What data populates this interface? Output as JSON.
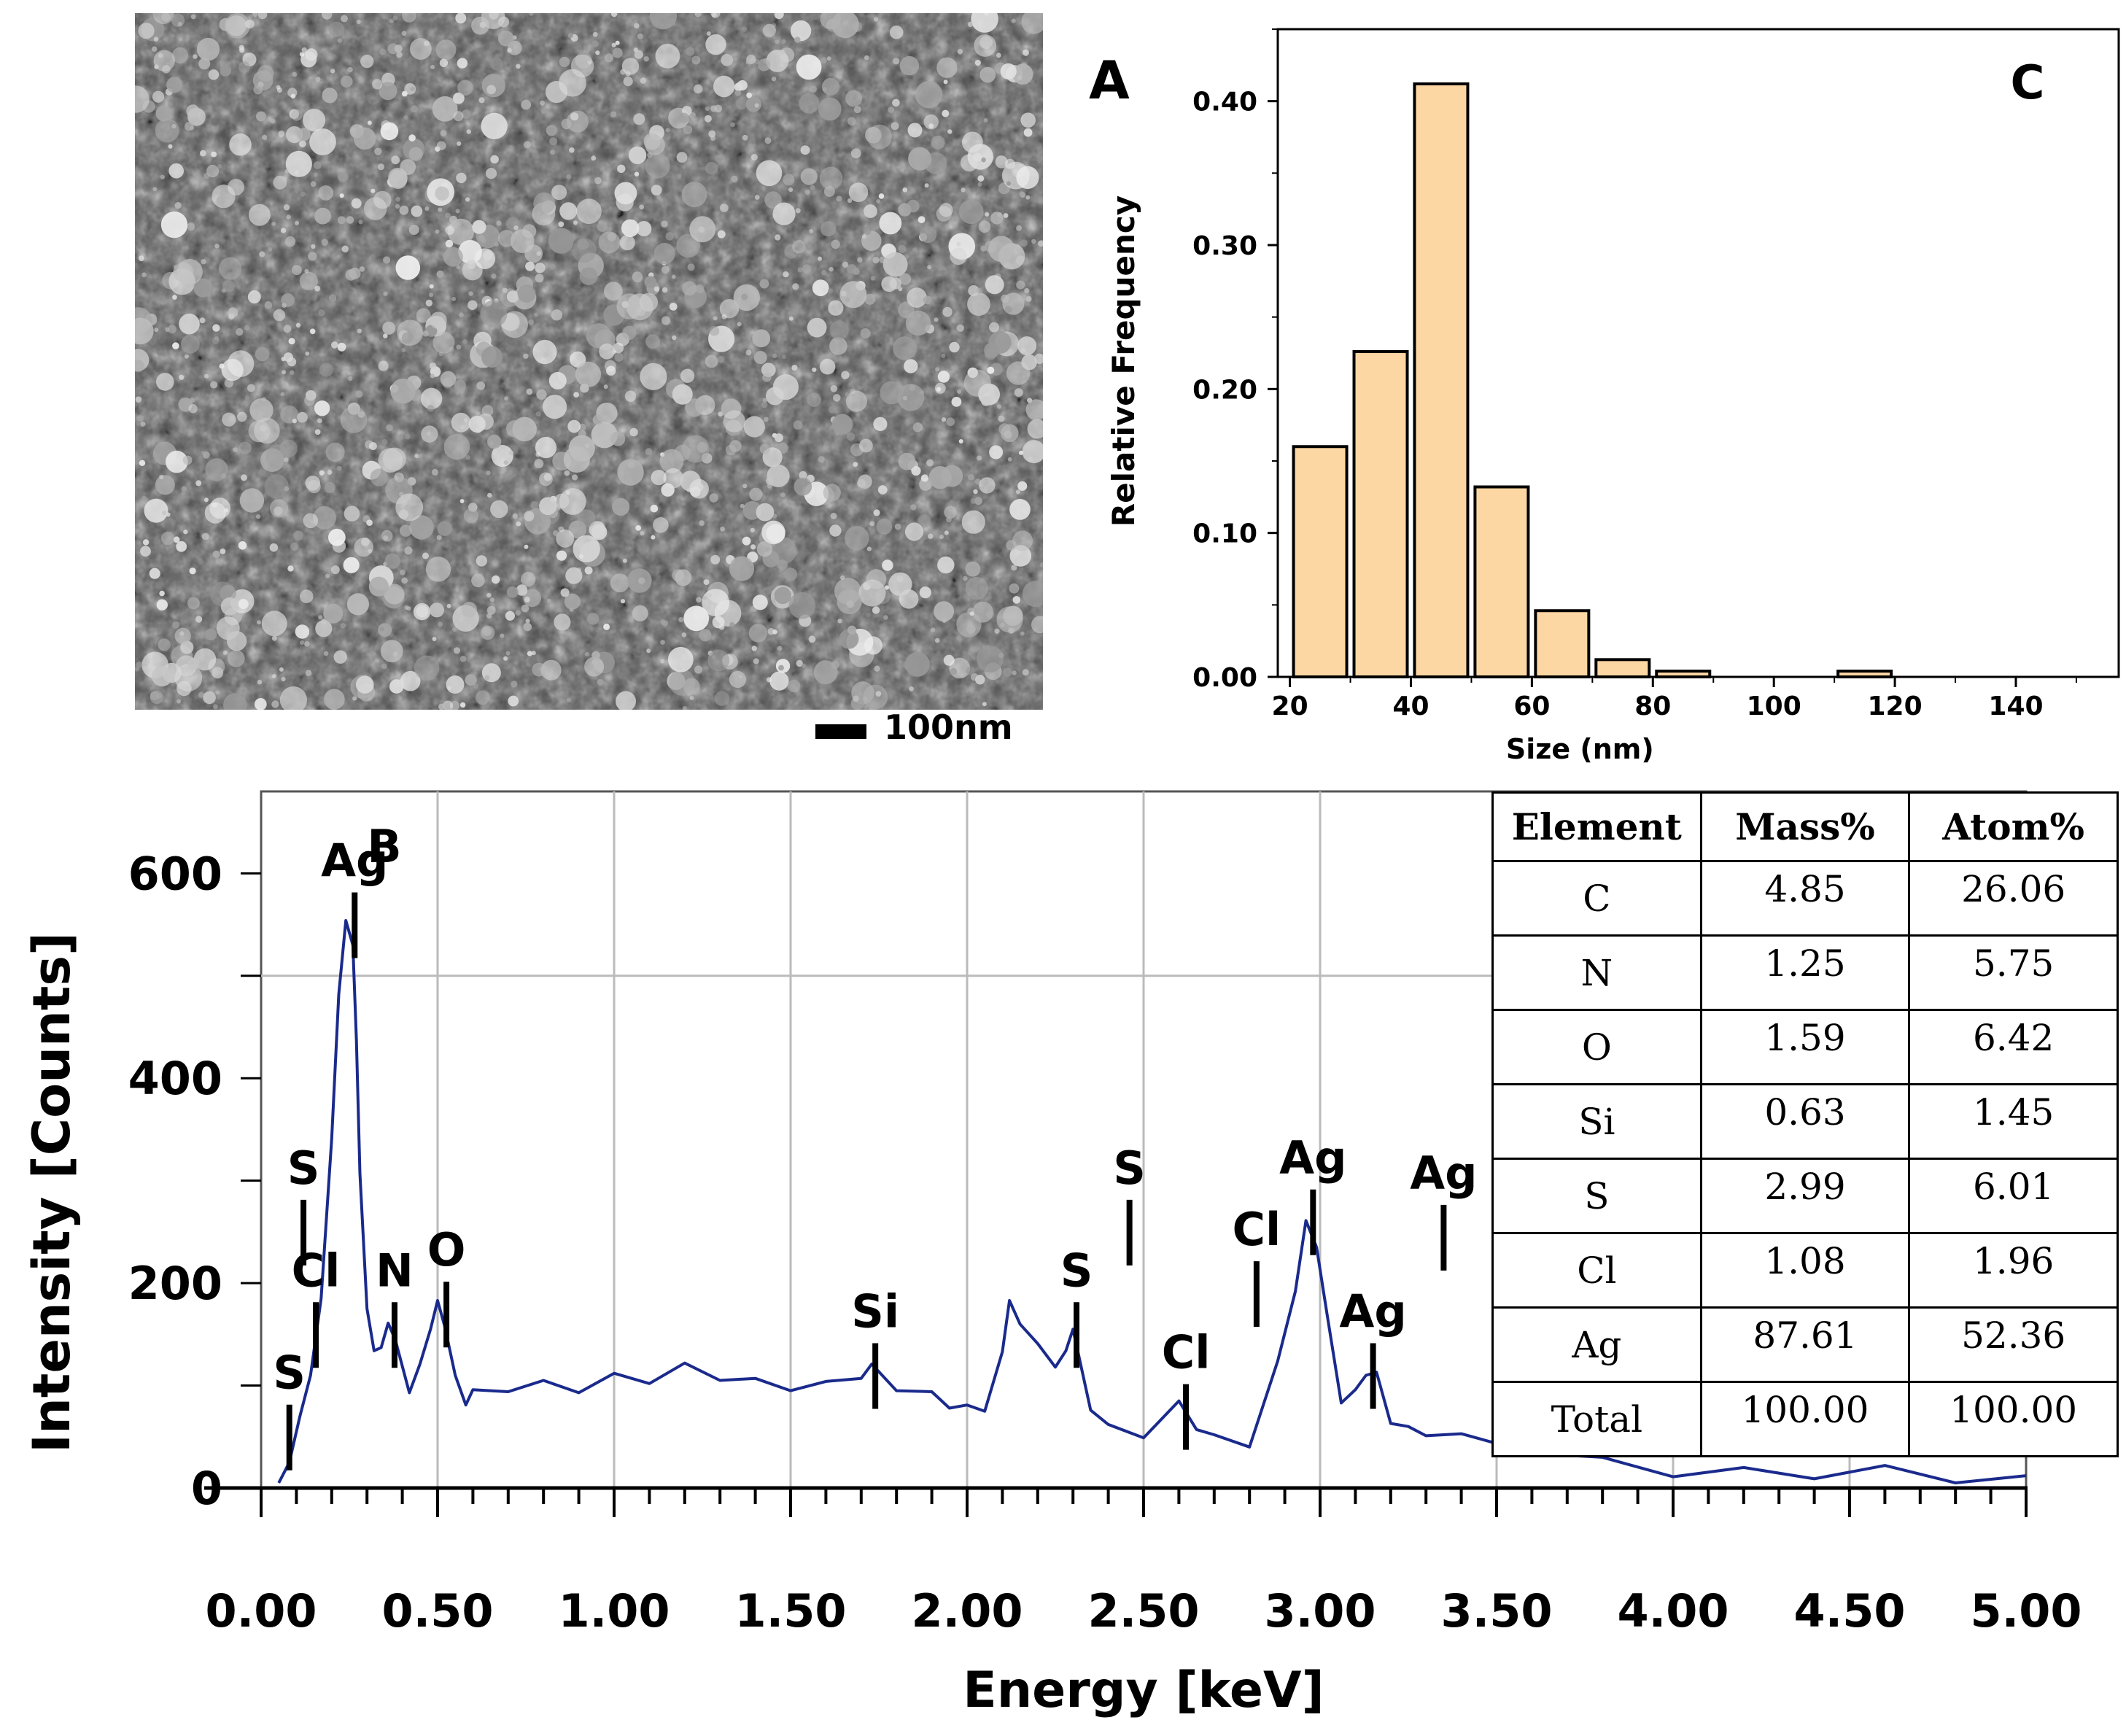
{
  "panels": {
    "a_label": "A",
    "b_label": "B",
    "c_label": "C",
    "scale_bar_label": "100nm"
  },
  "colors": {
    "bar_fill": "#fdd7a3",
    "spectrum_line": "#1a2a8c",
    "grid": "#bbbbbb"
  },
  "chart_data": [
    {
      "id": "histogram",
      "type": "bar",
      "title": "C",
      "xlabel": "Size (nm)",
      "ylabel": "Relative Frequency",
      "xlim": [
        18,
        157
      ],
      "ylim": [
        0,
        0.45
      ],
      "xticks": [
        20,
        40,
        60,
        80,
        100,
        120,
        140
      ],
      "xtick_labels": [
        "20",
        "40",
        "60",
        "80",
        "100",
        "120",
        "140"
      ],
      "yticks": [
        0,
        0.1,
        0.2,
        0.3,
        0.4
      ],
      "ytick_labels": [
        "0.00",
        "0.10",
        "0.20",
        "0.30",
        "0.40"
      ],
      "bin_width": 10,
      "bar_centers": [
        25,
        35,
        45,
        55,
        65,
        75,
        85,
        115
      ],
      "values": [
        0.16,
        0.226,
        0.412,
        0.132,
        0.046,
        0.012,
        0.004,
        0.004
      ]
    },
    {
      "id": "eds-spectrum",
      "type": "line",
      "title": "B",
      "xlabel": "Energy [keV]",
      "ylabel": "Intensity [Counts]",
      "xlim": [
        0,
        5
      ],
      "ylim": [
        0,
        680
      ],
      "xticks": [
        0,
        0.5,
        1,
        1.5,
        2,
        2.5,
        3,
        3.5,
        4,
        4.5,
        5
      ],
      "xtick_labels": [
        "0.00",
        "0.50",
        "1.00",
        "1.50",
        "2.00",
        "2.50",
        "3.00",
        "3.50",
        "4.00",
        "4.50",
        "5.00"
      ],
      "yticks": [
        0,
        200,
        400,
        600
      ],
      "ytick_labels": [
        "0",
        "200",
        "400",
        "600"
      ],
      "grid": true,
      "x": [
        0.05,
        0.08,
        0.11,
        0.14,
        0.17,
        0.2,
        0.22,
        0.24,
        0.26,
        0.27,
        0.28,
        0.3,
        0.32,
        0.34,
        0.36,
        0.38,
        0.4,
        0.42,
        0.45,
        0.48,
        0.5,
        0.52,
        0.55,
        0.58,
        0.6,
        0.7,
        0.8,
        0.9,
        1.0,
        1.1,
        1.2,
        1.3,
        1.4,
        1.5,
        1.6,
        1.7,
        1.73,
        1.8,
        1.9,
        1.95,
        2.0,
        2.05,
        2.1,
        2.12,
        2.15,
        2.2,
        2.25,
        2.28,
        2.3,
        2.35,
        2.4,
        2.5,
        2.6,
        2.65,
        2.7,
        2.8,
        2.88,
        2.93,
        2.96,
        2.99,
        3.02,
        3.06,
        3.1,
        3.13,
        3.16,
        3.2,
        3.25,
        3.3,
        3.4,
        3.6,
        3.8,
        4.0,
        4.2,
        4.4,
        4.6,
        4.8,
        5.0
      ],
      "values": [
        5,
        25,
        70,
        110,
        180,
        350,
        480,
        560,
        520,
        440,
        300,
        175,
        130,
        145,
        160,
        150,
        110,
        95,
        115,
        165,
        180,
        165,
        110,
        85,
        88,
        95,
        100,
        102,
        110,
        108,
        112,
        108,
        100,
        95,
        100,
        115,
        120,
        100,
        85,
        80,
        75,
        85,
        130,
        190,
        160,
        145,
        110,
        135,
        150,
        85,
        60,
        55,
        75,
        60,
        45,
        40,
        120,
        200,
        260,
        240,
        160,
        85,
        90,
        120,
        110,
        70,
        60,
        55,
        45,
        35,
        25,
        20,
        18,
        15,
        12,
        8,
        5
      ],
      "annotations": [
        {
          "label": "Ag",
          "x": 0.265,
          "peak": 560
        },
        {
          "label": "S",
          "x": 0.12,
          "peak": 260
        },
        {
          "label": "Cl",
          "x": 0.155,
          "peak": 160
        },
        {
          "label": "S",
          "x": 0.08,
          "peak": 60
        },
        {
          "label": "N",
          "x": 0.378,
          "peak": 160
        },
        {
          "label": "O",
          "x": 0.525,
          "peak": 180
        },
        {
          "label": "Si",
          "x": 1.74,
          "peak": 120
        },
        {
          "label": "S",
          "x": 2.31,
          "peak": 160
        },
        {
          "label": "S",
          "x": 2.46,
          "peak": 260
        },
        {
          "label": "Cl",
          "x": 2.62,
          "peak": 80
        },
        {
          "label": "Cl",
          "x": 2.82,
          "peak": 200
        },
        {
          "label": "Ag",
          "x": 2.98,
          "peak": 270
        },
        {
          "label": "Ag",
          "x": 3.15,
          "peak": 120
        },
        {
          "label": "Ag",
          "x": 3.35,
          "peak": 255
        }
      ]
    }
  ],
  "table": {
    "headers": [
      "Element",
      "Mass%",
      "Atom%"
    ],
    "rows": [
      [
        "C",
        "4.85",
        "26.06"
      ],
      [
        "N",
        "1.25",
        "5.75"
      ],
      [
        "O",
        "1.59",
        "6.42"
      ],
      [
        "Si",
        "0.63",
        "1.45"
      ],
      [
        "S",
        "2.99",
        "6.01"
      ],
      [
        "Cl",
        "1.08",
        "1.96"
      ],
      [
        "Ag",
        "87.61",
        "52.36"
      ],
      [
        "Total",
        "100.00",
        "100.00"
      ]
    ]
  }
}
